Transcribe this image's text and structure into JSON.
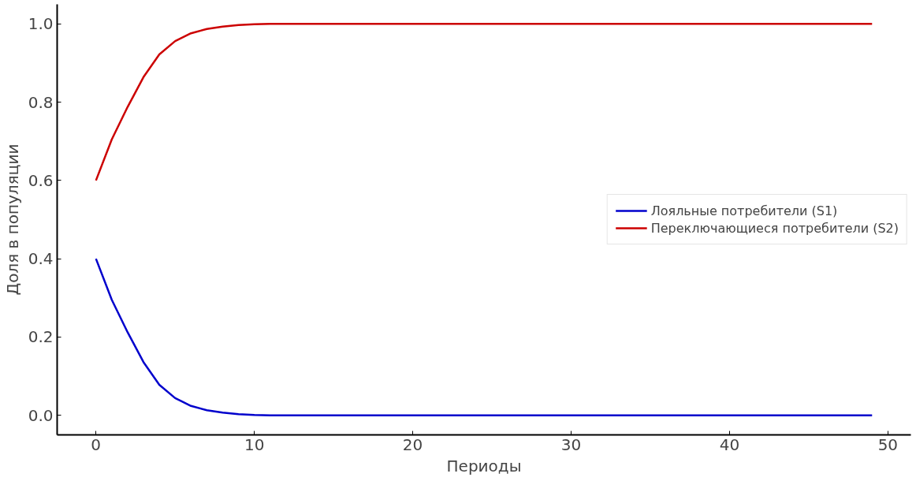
{
  "chart_data": {
    "type": "line",
    "xlabel": "Периоды",
    "ylabel": "Доля в популяции",
    "x": [
      0,
      1,
      2,
      3,
      4,
      5,
      6,
      7,
      8,
      9,
      10,
      11,
      12,
      13,
      14,
      15,
      16,
      17,
      18,
      19,
      20,
      21,
      22,
      23,
      24,
      25,
      26,
      27,
      28,
      29,
      30,
      31,
      32,
      33,
      34,
      35,
      36,
      37,
      38,
      39,
      40,
      41,
      42,
      43,
      44,
      45,
      46,
      47,
      48,
      49
    ],
    "series": [
      {
        "name": "Лояльные потребители (S1)",
        "color": "#0000cc",
        "values": [
          0.4,
          0.295,
          0.212,
          0.136,
          0.078,
          0.044,
          0.024,
          0.013,
          0.007,
          0.003,
          0.001,
          0,
          0,
          0,
          0,
          0,
          0,
          0,
          0,
          0,
          0,
          0,
          0,
          0,
          0,
          0,
          0,
          0,
          0,
          0,
          0,
          0,
          0,
          0,
          0,
          0,
          0,
          0,
          0,
          0,
          0,
          0,
          0,
          0,
          0,
          0,
          0,
          0,
          0,
          0
        ]
      },
      {
        "name": "Переключающиеся потребители (S2)",
        "color": "#cc0000",
        "values": [
          0.6,
          0.705,
          0.788,
          0.864,
          0.922,
          0.956,
          0.976,
          0.987,
          0.993,
          0.997,
          0.999,
          1,
          1,
          1,
          1,
          1,
          1,
          1,
          1,
          1,
          1,
          1,
          1,
          1,
          1,
          1,
          1,
          1,
          1,
          1,
          1,
          1,
          1,
          1,
          1,
          1,
          1,
          1,
          1,
          1,
          1,
          1,
          1,
          1,
          1,
          1,
          1,
          1,
          1,
          1
        ]
      }
    ],
    "xlim": [
      -2.45,
      51.45
    ],
    "ylim": [
      -0.05,
      1.05
    ],
    "xticks": [
      0,
      10,
      20,
      30,
      40,
      50
    ],
    "yticks": [
      {
        "value": 0,
        "label": "0.0"
      },
      {
        "value": 0.2,
        "label": "0.2"
      },
      {
        "value": 0.4,
        "label": "0.4"
      },
      {
        "value": 0.6,
        "label": "0.6"
      },
      {
        "value": 0.8,
        "label": "0.8"
      },
      {
        "value": 1,
        "label": "1.0"
      }
    ],
    "grid": false,
    "legend": "right",
    "marker": "none",
    "line_style": "solid"
  }
}
